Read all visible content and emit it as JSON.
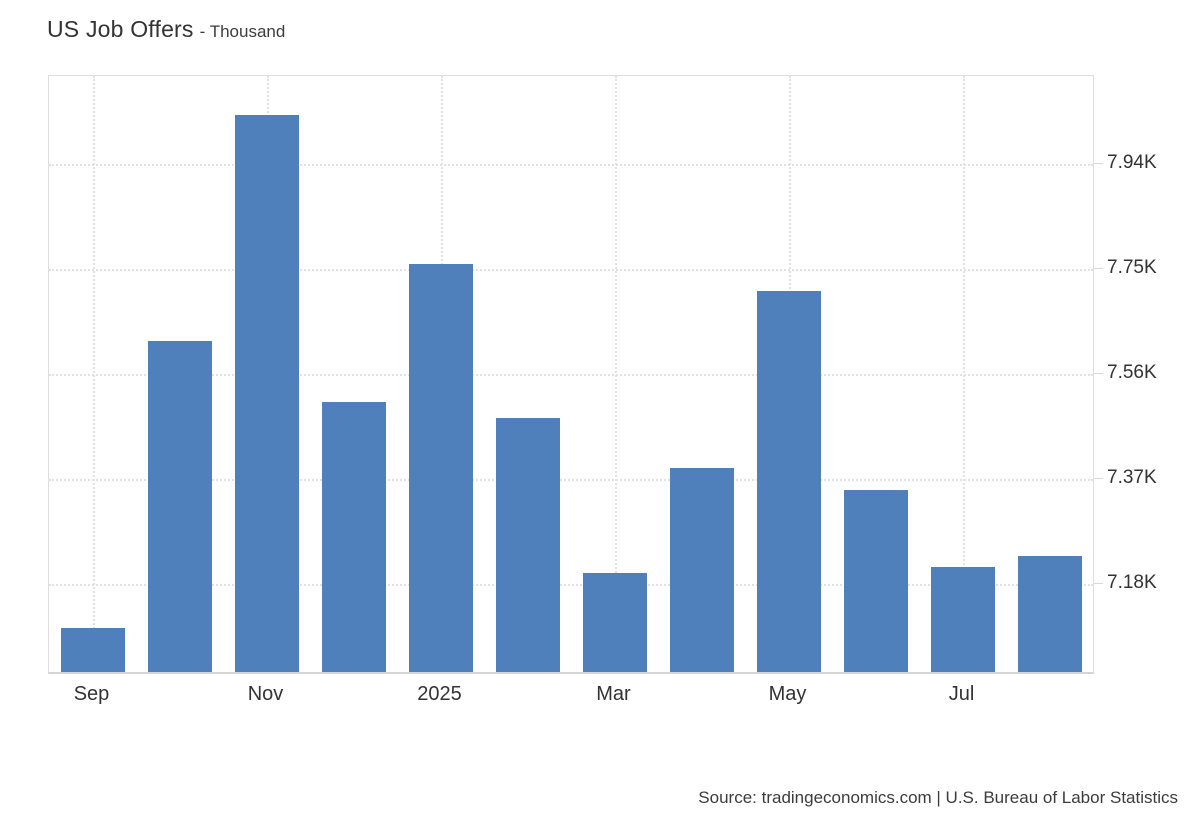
{
  "header": {
    "title": "US Job Offers",
    "unit_label": "- Thousand"
  },
  "footer": {
    "source": "Source: tradingeconomics.com | U.S. Bureau of Labor Statistics"
  },
  "colors": {
    "bar": "#4f80bb",
    "grid": "#e2e2e2",
    "border": "#d9d9d9",
    "text": "#333333"
  },
  "chart_data": {
    "type": "bar",
    "title": "US Job Offers",
    "unit": "Thousand",
    "value_display_format": "K",
    "categories": [
      "Sep 2024",
      "Oct 2024",
      "Nov 2024",
      "Dec 2024",
      "Jan 2025",
      "Feb 2025",
      "Mar 2025",
      "Apr 2025",
      "May 2025",
      "Jun 2025",
      "Jul 2025",
      "Aug 2025"
    ],
    "values": [
      7.1,
      7.62,
      8.03,
      7.51,
      7.76,
      7.48,
      7.2,
      7.39,
      7.71,
      7.35,
      7.21,
      7.23
    ],
    "x_tick_labels": [
      {
        "index": 0,
        "label": "Sep"
      },
      {
        "index": 2,
        "label": "Nov"
      },
      {
        "index": 4,
        "label": "2025"
      },
      {
        "index": 6,
        "label": "Mar"
      },
      {
        "index": 8,
        "label": "May"
      },
      {
        "index": 10,
        "label": "Jul"
      }
    ],
    "y_ticks": [
      {
        "value": 7.18,
        "label": "7.18K"
      },
      {
        "value": 7.37,
        "label": "7.37K"
      },
      {
        "value": 7.56,
        "label": "7.56K"
      },
      {
        "value": 7.75,
        "label": "7.75K"
      },
      {
        "value": 7.94,
        "label": "7.94K"
      }
    ],
    "ylim": [
      7.02,
      8.1
    ],
    "xlabel": "",
    "ylabel": "",
    "grid": "dotted",
    "legend": "none",
    "y_axis_position": "right",
    "bar_color": "#4f80bb",
    "source": "Source: tradingeconomics.com | U.S. Bureau of Labor Statistics"
  }
}
